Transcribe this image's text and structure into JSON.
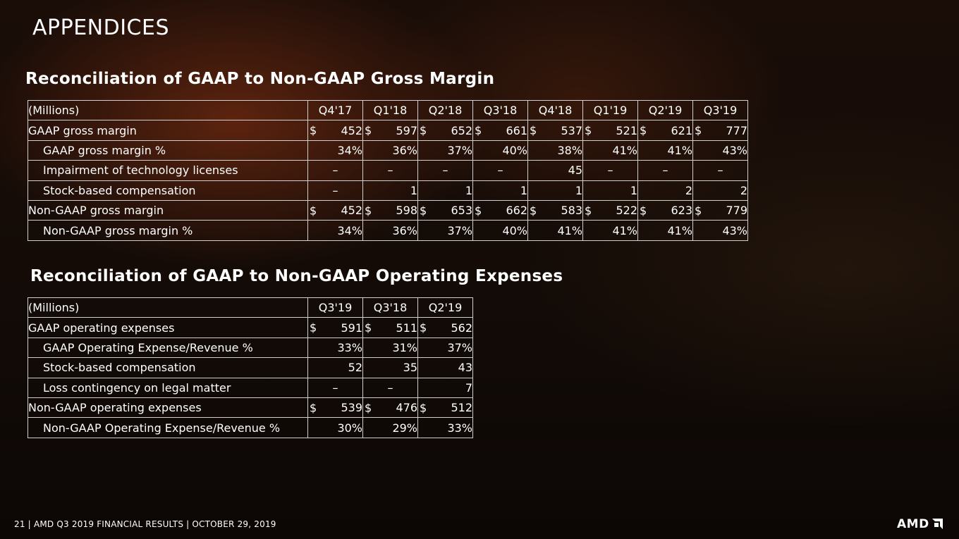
{
  "slide": {
    "title": "APPENDICES"
  },
  "gross_margin": {
    "title": "Reconciliation of GAAP to Non-GAAP Gross Margin",
    "unit_label": "(Millions)",
    "columns": [
      "Q4'17",
      "Q1'18",
      "Q2'18",
      "Q3'18",
      "Q4'18",
      "Q1'19",
      "Q2'19",
      "Q3'19"
    ],
    "rows": [
      {
        "label": "GAAP gross margin",
        "indent": false,
        "kind": "num",
        "currency": "$",
        "values": [
          "452",
          "597",
          "652",
          "661",
          "537",
          "521",
          "621",
          "777"
        ]
      },
      {
        "label": "GAAP gross margin %",
        "indent": true,
        "kind": "pct",
        "currency": "",
        "values": [
          "34%",
          "36%",
          "37%",
          "40%",
          "38%",
          "41%",
          "41%",
          "43%"
        ]
      },
      {
        "label": "Impairment of technology licenses",
        "indent": true,
        "kind": "num",
        "currency": "",
        "values": [
          "–",
          "–",
          "–",
          "–",
          "45",
          "–",
          "–",
          "–"
        ]
      },
      {
        "label": "Stock-based compensation",
        "indent": true,
        "kind": "num",
        "currency": "",
        "values": [
          "–",
          "1",
          "1",
          "1",
          "1",
          "1",
          "2",
          "2"
        ]
      },
      {
        "label": "Non-GAAP gross margin",
        "indent": false,
        "kind": "num",
        "currency": "$",
        "values": [
          "452",
          "598",
          "653",
          "662",
          "583",
          "522",
          "623",
          "779"
        ]
      },
      {
        "label": "Non-GAAP gross margin %",
        "indent": true,
        "kind": "pct",
        "currency": "",
        "values": [
          "34%",
          "36%",
          "37%",
          "40%",
          "41%",
          "41%",
          "41%",
          "43%"
        ]
      }
    ]
  },
  "operating_expenses": {
    "title": "Reconciliation of GAAP to Non-GAAP Operating Expenses",
    "unit_label": "(Millions)",
    "columns": [
      "Q3'19",
      "Q3'18",
      "Q2'19"
    ],
    "rows": [
      {
        "label": "GAAP operating expenses",
        "indent": false,
        "kind": "num",
        "currency": "$",
        "values": [
          "591",
          "511",
          "562"
        ]
      },
      {
        "label": "GAAP Operating Expense/Revenue %",
        "indent": true,
        "kind": "pct",
        "currency": "",
        "values": [
          "33%",
          "31%",
          "37%"
        ]
      },
      {
        "label": "Stock-based compensation",
        "indent": true,
        "kind": "num",
        "currency": "",
        "values": [
          "52",
          "35",
          "43"
        ]
      },
      {
        "label": "Loss contingency on legal matter",
        "indent": true,
        "kind": "num",
        "currency": "",
        "values": [
          "–",
          "–",
          "7"
        ]
      },
      {
        "label": "Non-GAAP operating expenses",
        "indent": false,
        "kind": "num",
        "currency": "$",
        "values": [
          "539",
          "476",
          "512"
        ]
      },
      {
        "label": "Non-GAAP Operating Expense/Revenue %",
        "indent": true,
        "kind": "pct",
        "currency": "",
        "values": [
          "30%",
          "29%",
          "33%"
        ]
      }
    ]
  },
  "footer": {
    "text": "21 | AMD Q3 2019 FINANCIAL RESULTS | OCTOBER 29, 2019"
  },
  "logo": {
    "text": "AMD",
    "icon": "amd-arrow-icon"
  }
}
